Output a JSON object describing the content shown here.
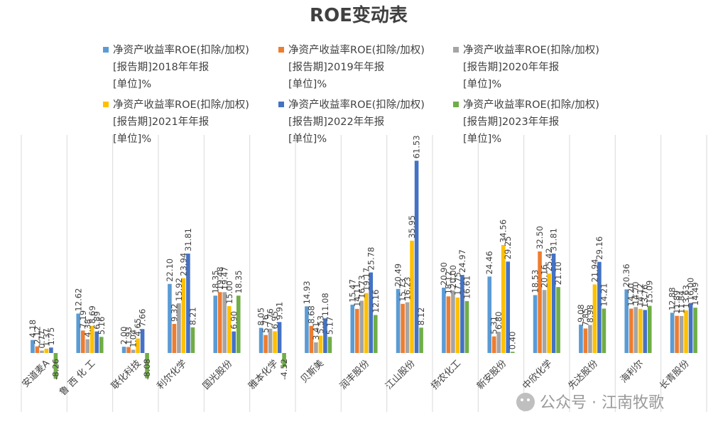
{
  "chart_data": {
    "type": "bar",
    "title": "ROE变动表",
    "xlabel": "",
    "ylabel": "",
    "ylim": [
      -10,
      65
    ],
    "grid": "vertical category separators",
    "legend_position": "top",
    "categories": [
      "安道麦A",
      "鲁 西 化 工",
      "联化科技",
      "利尔化学",
      "国光股份",
      "雅本化学",
      "贝斯美",
      "润丰股份",
      "江山股份",
      "扬农化工",
      "新安股份",
      "中欣化学",
      "先达股份",
      "海利尔",
      "长青股份"
    ],
    "series": [
      {
        "name_lines": [
          "净资产收益率ROE(扣除/加权)",
          "[报告期]2018年年报",
          "[单位]%"
        ],
        "color": "#5B9BD5",
        "values": [
          4.18,
          12.62,
          2.0,
          22.1,
          18.35,
          8.05,
          14.93,
          15.47,
          20.49,
          20.9,
          24.46,
          18.53,
          9.08,
          20.36,
          12.88
        ]
      },
      {
        "name_lines": [
          "净资产收益率ROE(扣除/加权)",
          "[报告期]2019年年报",
          "[单位]%"
        ],
        "color": "#ED7D31",
        "values": [
          2.12,
          7.19,
          1.93,
          9.32,
          19.48,
          5.76,
          8.68,
          14.11,
          15.73,
          18.12,
          5.31,
          32.5,
          7.85,
          14.2,
          11.89
        ]
      },
      {
        "name_lines": [
          "净资产收益率ROE(扣除/加权)",
          "[报告期]2020年年报",
          "[单位]%"
        ],
        "color": "#A5A5A5",
        "values": [
          0.77,
          4.38,
          1.04,
          15.92,
          19.47,
          7.76,
          3.41,
          16.73,
          16.23,
          20.0,
          6.8,
          20.16,
          8.98,
          14.7,
          11.84
        ]
      },
      {
        "name_lines": [
          "净资产收益率ROE(扣除/加权)",
          "[报告期]2021年年报",
          "[单位]%"
        ],
        "color": "#FFC000",
        "values": [
          1.37,
          8.69,
          4.65,
          23.94,
          15.0,
          6.95,
          5.53,
          19.17,
          35.95,
          17.75,
          34.56,
          25.42,
          21.94,
          14.12,
          13.63
        ]
      },
      {
        "name_lines": [
          "净资产收益率ROE(扣除/加权)",
          "[报告期]2022年年报",
          "[单位]%"
        ],
        "color": "#4472C4",
        "values": [
          1.75,
          6.89,
          7.66,
          31.81,
          6.9,
          9.91,
          11.08,
          25.78,
          61.53,
          24.97,
          29.25,
          31.81,
          29.16,
          13.76,
          16.0
        ]
      },
      {
        "name_lines": [
          "净资产收益率ROE(扣除/加权)",
          "[报告期]2023年年报",
          "[单位]%"
        ],
        "color": "#70AD47",
        "values": [
          -8.26,
          5.16,
          -8.08,
          8.21,
          18.35,
          -4.52,
          5.17,
          12.16,
          8.12,
          16.61,
          0.4,
          21.1,
          14.21,
          15.09,
          14.49
        ]
      }
    ]
  },
  "watermark_text": "公众号 · 江南牧歌",
  "watermark_icon": "wechat-icon"
}
